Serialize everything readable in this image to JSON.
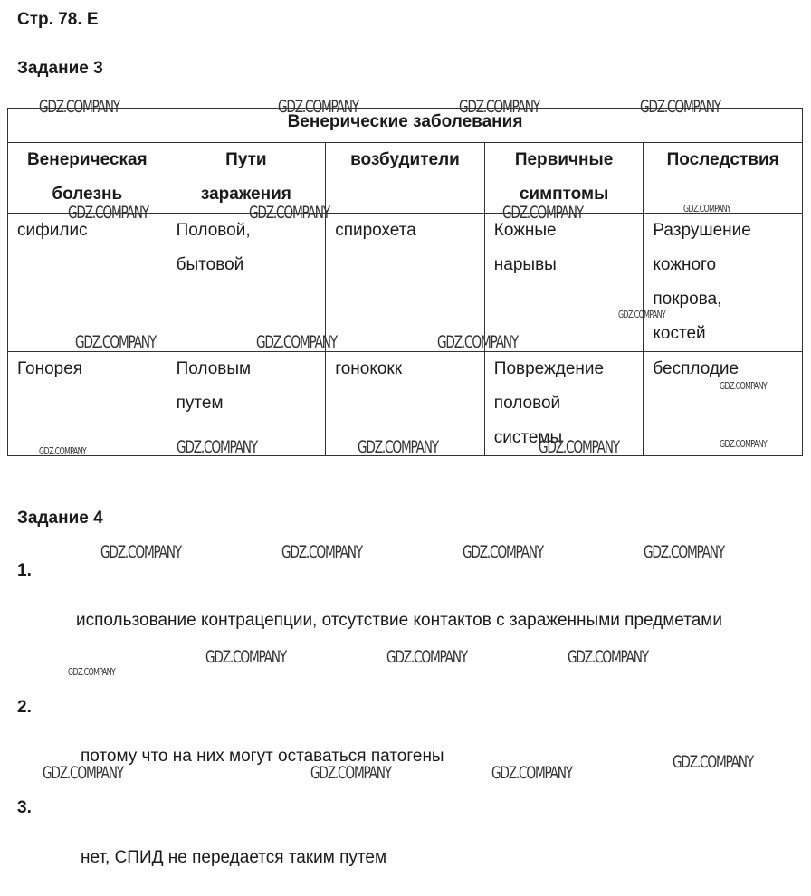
{
  "page_header": "Стр. 78. Е",
  "task3": {
    "heading": "Задание 3",
    "table": {
      "title": "Венерические заболевания",
      "headers": [
        [
          "Венерическая",
          "болезнь"
        ],
        [
          "Пути",
          "заражения"
        ],
        [
          "возбудители"
        ],
        [
          "Первичные",
          "симптомы"
        ],
        [
          "Последствия"
        ]
      ],
      "rows": [
        [
          "сифилис",
          "Половой, бытовой",
          "спирохета",
          "Кожные нарывы",
          "Разрушение кожного покрова, костей"
        ],
        [
          "Гонорея",
          "Половым путем",
          "гонококк",
          "Повреждение половой системы",
          "бесплодие"
        ]
      ]
    }
  },
  "task4": {
    "heading": "Задание 4",
    "items": [
      {
        "number": "1.",
        "answer": "использование контрацепции, отсутствие контактов с зараженными предметами"
      },
      {
        "number": "2.",
        "answer": "потому что на них могут оставаться патогены"
      },
      {
        "number": "3.",
        "answer": "нет, СПИД не передается таким путем"
      }
    ]
  },
  "watermark": "GDZ.COMPANY"
}
